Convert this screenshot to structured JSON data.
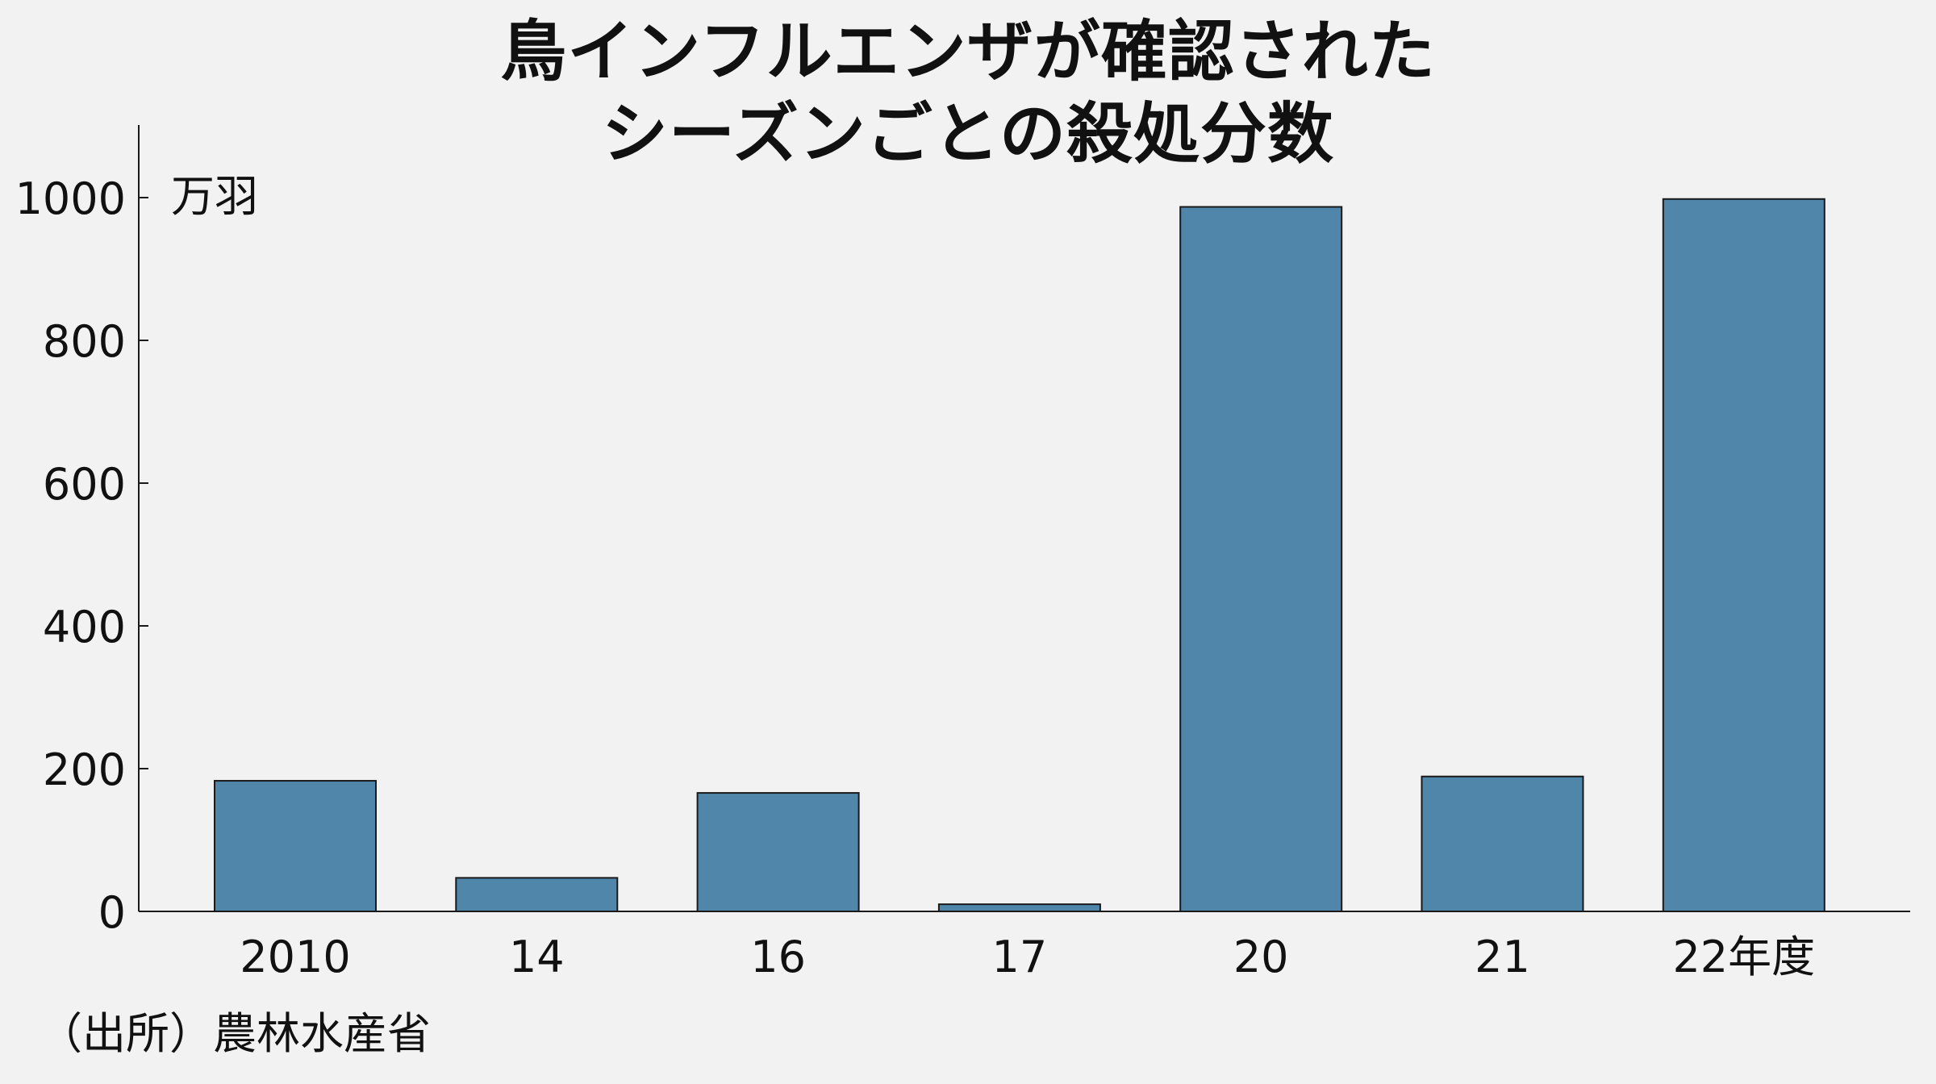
{
  "title": {
    "line1": "鳥インフルエンザが確認された",
    "line2": "シーズンごとの殺処分数"
  },
  "source": "（出所）農林水産省",
  "colors": {
    "background": "#f2f2f3",
    "bar_fill": "#4f86aa",
    "bar_stroke": "#1a1a1a",
    "axis": "#1a1a1a"
  },
  "chart_data": {
    "type": "bar",
    "title": "鳥インフルエンザが確認されたシーズンごとの殺処分数",
    "unit_label": "万羽",
    "categories": [
      "2010",
      "14",
      "16",
      "17",
      "20",
      "21",
      "22年度"
    ],
    "values": [
      183,
      47,
      166,
      10,
      987,
      189,
      998
    ],
    "ylim": [
      0,
      1100
    ],
    "yticks": [
      0,
      200,
      400,
      600,
      800,
      1000
    ],
    "grid": false,
    "legend": "none"
  }
}
